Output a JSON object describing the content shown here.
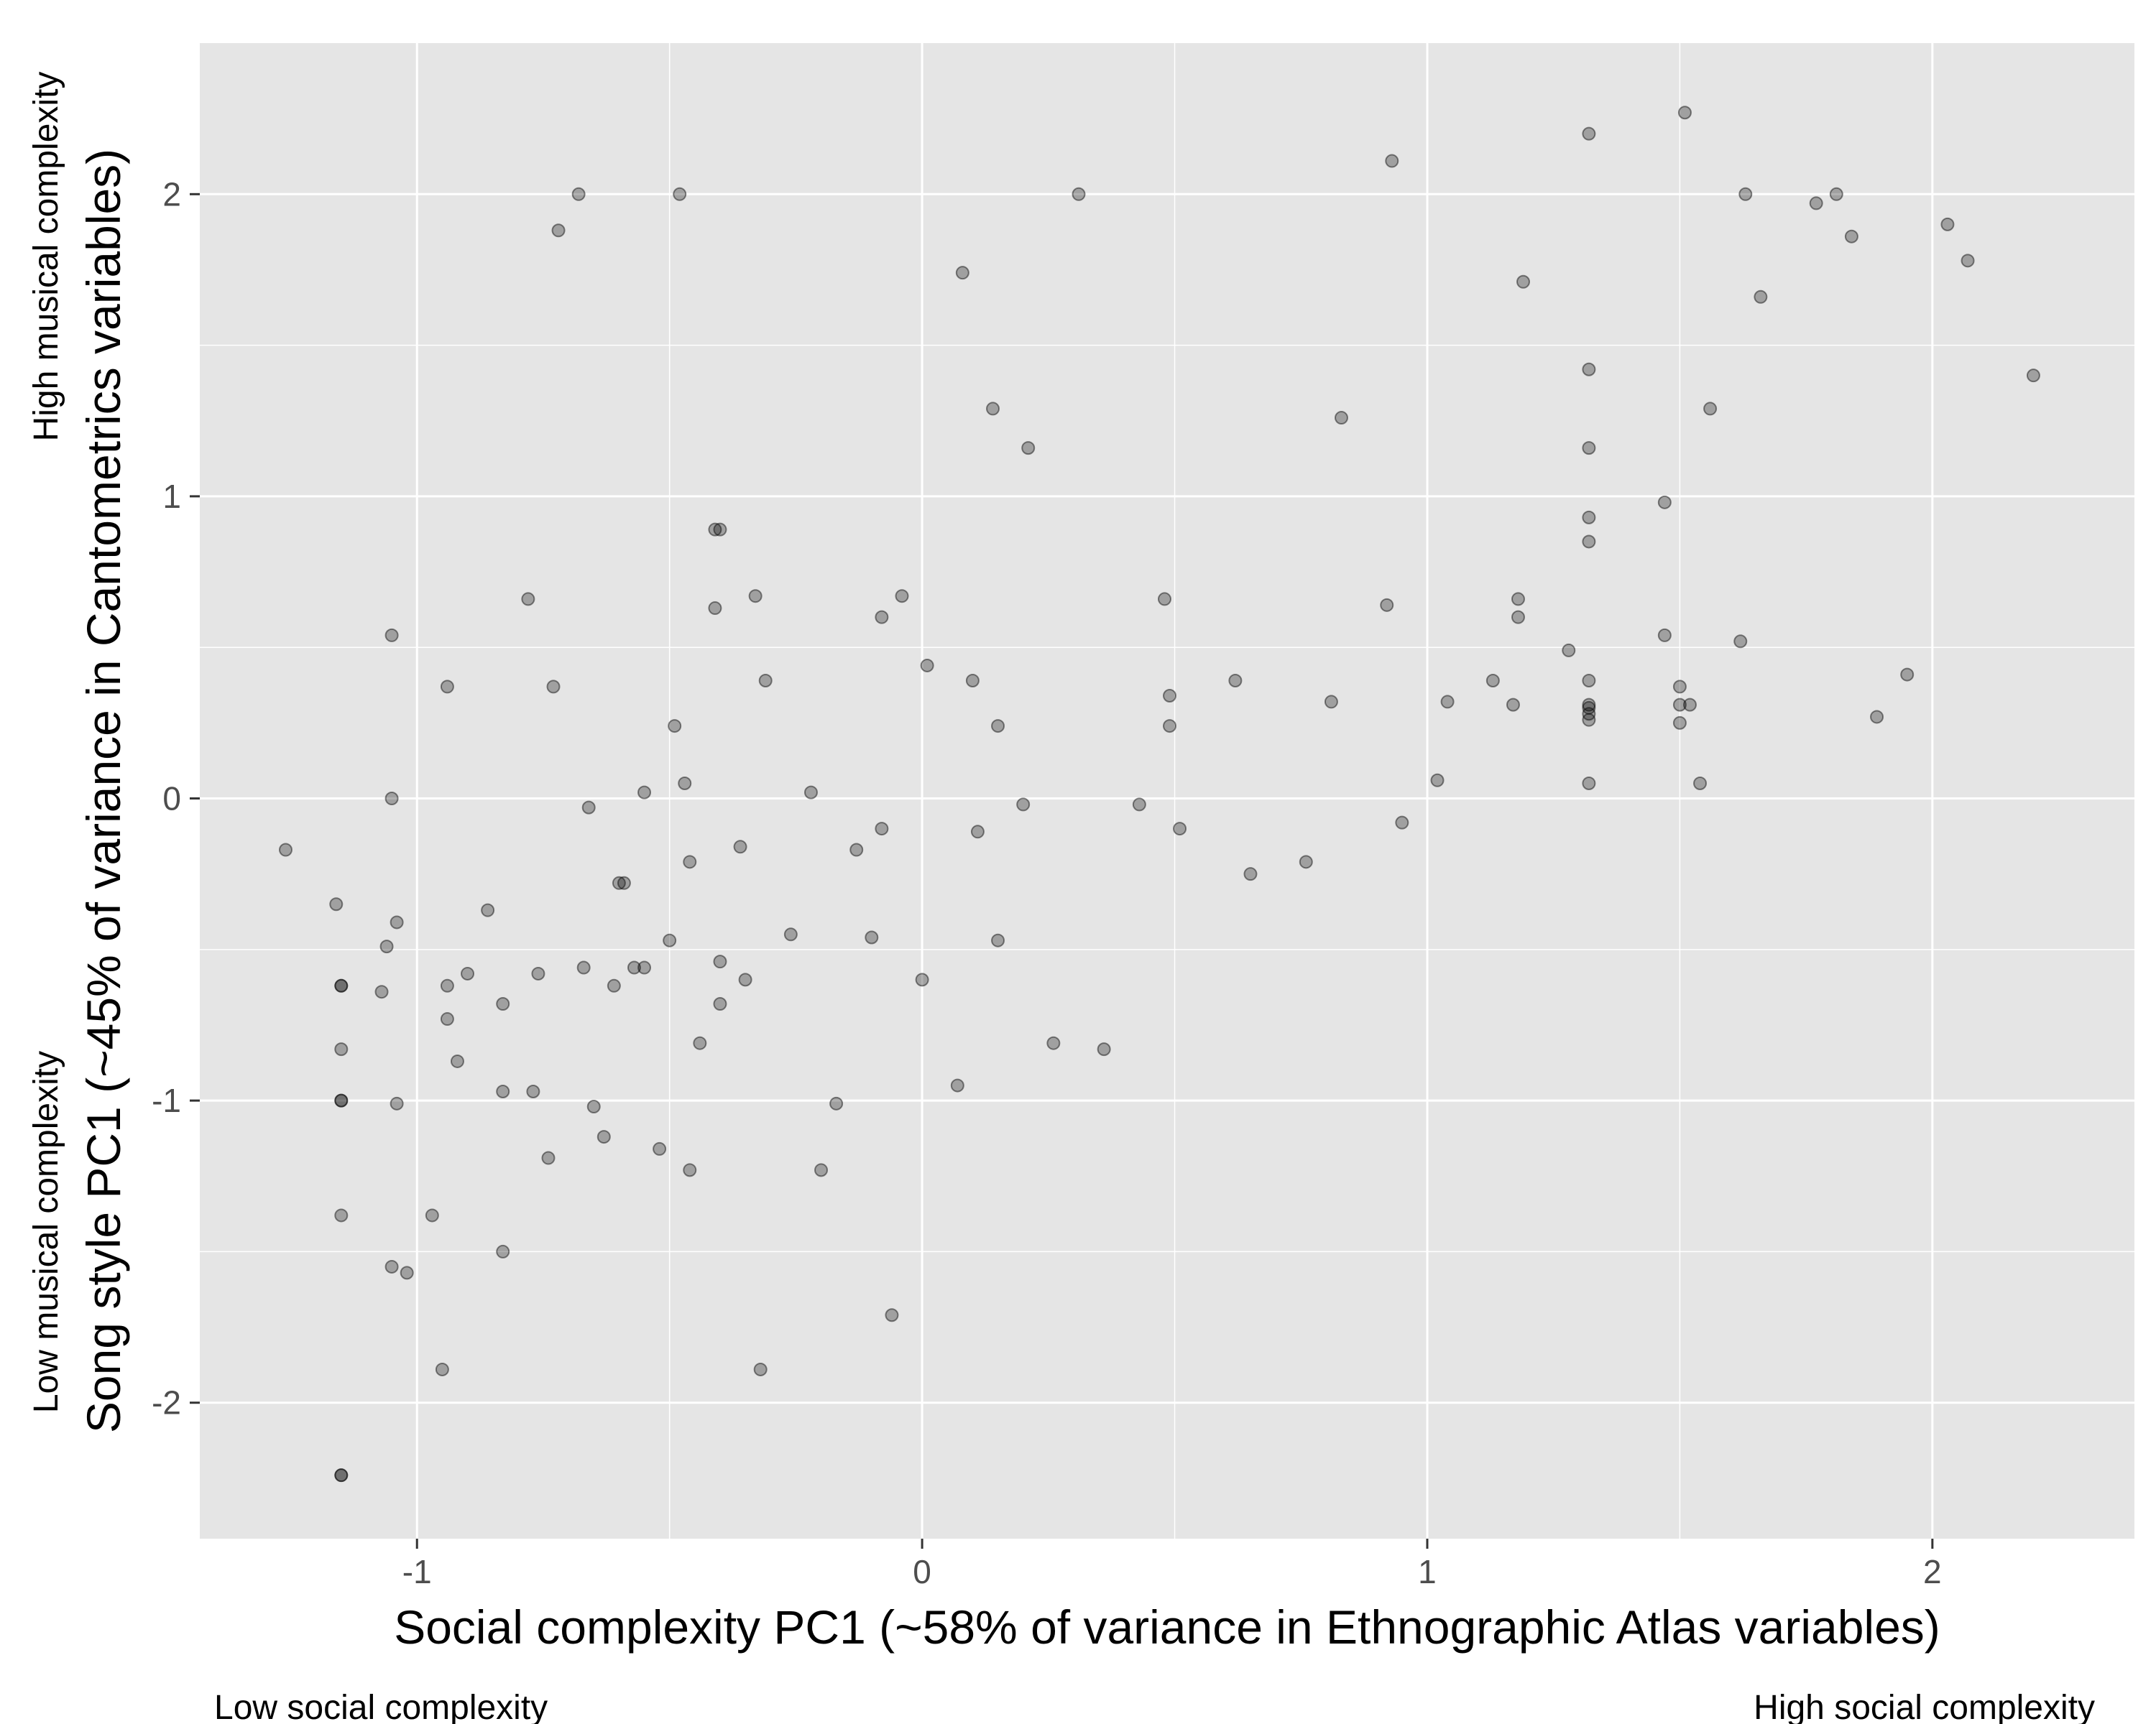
{
  "chart_data": {
    "type": "scatter",
    "xlabel": "Social complexity PC1 (~58% of variance in Ethnographic Atlas variables)",
    "ylabel": "Song style PC1 (~45% of variance in Cantometrics variables)",
    "xlim": [
      -1.43,
      2.4
    ],
    "ylim": [
      -2.45,
      2.5
    ],
    "x_ticks": [
      -1,
      0,
      1,
      2
    ],
    "y_ticks": [
      -2,
      -1,
      0,
      1,
      2
    ],
    "grid": true,
    "annotations": {
      "x_low": "Low social complexity",
      "x_high": "High social complexity",
      "y_low": "Low musical complexity",
      "y_high": "High musical complexity"
    },
    "colors": {
      "panel": "#e5e5e5",
      "grid": "#ffffff",
      "point": "#000000"
    },
    "points": [
      [
        -1.26,
        -0.17
      ],
      [
        -1.16,
        -0.35
      ],
      [
        -1.15,
        -0.62
      ],
      [
        -1.15,
        -0.62
      ],
      [
        -1.15,
        -0.83
      ],
      [
        -1.15,
        -1.0
      ],
      [
        -1.15,
        -1.0
      ],
      [
        -1.15,
        -1.38
      ],
      [
        -1.15,
        -2.24
      ],
      [
        -1.15,
        -2.24
      ],
      [
        -1.07,
        -0.64
      ],
      [
        -1.06,
        -0.49
      ],
      [
        -1.05,
        0.54
      ],
      [
        -1.05,
        0.0
      ],
      [
        -1.05,
        -1.55
      ],
      [
        -1.04,
        -0.41
      ],
      [
        -1.04,
        -1.01
      ],
      [
        -1.02,
        -1.57
      ],
      [
        -0.97,
        -1.38
      ],
      [
        -0.95,
        -1.89
      ],
      [
        -0.94,
        0.37
      ],
      [
        -0.94,
        -0.62
      ],
      [
        -0.94,
        -0.73
      ],
      [
        -0.92,
        -0.87
      ],
      [
        -0.9,
        -0.58
      ],
      [
        -0.86,
        -0.37
      ],
      [
        -0.83,
        -0.68
      ],
      [
        -0.83,
        -0.97
      ],
      [
        -0.83,
        -1.5
      ],
      [
        -0.78,
        0.66
      ],
      [
        -0.77,
        -0.97
      ],
      [
        -0.76,
        -0.58
      ],
      [
        -0.74,
        -1.19
      ],
      [
        -0.73,
        0.37
      ],
      [
        -0.72,
        1.88
      ],
      [
        -0.68,
        2.0
      ],
      [
        -0.67,
        -0.56
      ],
      [
        -0.66,
        -0.03
      ],
      [
        -0.65,
        -1.02
      ],
      [
        -0.63,
        -1.12
      ],
      [
        -0.61,
        -0.62
      ],
      [
        -0.6,
        -0.28
      ],
      [
        -0.59,
        -0.28
      ],
      [
        -0.57,
        -0.56
      ],
      [
        -0.55,
        0.02
      ],
      [
        -0.55,
        -0.56
      ],
      [
        -0.52,
        -1.16
      ],
      [
        -0.5,
        -0.47
      ],
      [
        -0.49,
        0.24
      ],
      [
        -0.48,
        2.0
      ],
      [
        -0.47,
        0.05
      ],
      [
        -0.46,
        -0.21
      ],
      [
        -0.46,
        -1.23
      ],
      [
        -0.44,
        -0.81
      ],
      [
        -0.41,
        0.89
      ],
      [
        -0.41,
        0.63
      ],
      [
        -0.4,
        0.89
      ],
      [
        -0.4,
        -0.54
      ],
      [
        -0.4,
        -0.68
      ],
      [
        -0.36,
        -0.16
      ],
      [
        -0.35,
        -0.6
      ],
      [
        -0.33,
        0.67
      ],
      [
        -0.32,
        -1.89
      ],
      [
        -0.31,
        0.39
      ],
      [
        -0.26,
        -0.45
      ],
      [
        -0.22,
        0.02
      ],
      [
        -0.2,
        -1.23
      ],
      [
        -0.17,
        -1.01
      ],
      [
        -0.13,
        -0.17
      ],
      [
        -0.1,
        -0.46
      ],
      [
        -0.08,
        0.6
      ],
      [
        -0.08,
        -0.1
      ],
      [
        -0.06,
        -1.71
      ],
      [
        -0.04,
        0.67
      ],
      [
        0.01,
        0.44
      ],
      [
        0.0,
        -0.6
      ],
      [
        0.07,
        -0.95
      ],
      [
        0.08,
        1.74
      ],
      [
        0.1,
        0.39
      ],
      [
        0.11,
        -0.11
      ],
      [
        0.14,
        1.29
      ],
      [
        0.15,
        0.24
      ],
      [
        0.15,
        -0.47
      ],
      [
        0.2,
        -0.02
      ],
      [
        0.21,
        1.16
      ],
      [
        0.26,
        -0.81
      ],
      [
        0.31,
        2.0
      ],
      [
        0.36,
        -0.83
      ],
      [
        0.43,
        -0.02
      ],
      [
        0.48,
        0.66
      ],
      [
        0.49,
        0.34
      ],
      [
        0.49,
        0.24
      ],
      [
        0.51,
        -0.1
      ],
      [
        0.62,
        0.39
      ],
      [
        0.65,
        -0.25
      ],
      [
        0.76,
        -0.21
      ],
      [
        0.81,
        0.32
      ],
      [
        0.83,
        1.26
      ],
      [
        0.92,
        0.64
      ],
      [
        0.93,
        2.11
      ],
      [
        0.95,
        -0.08
      ],
      [
        1.02,
        0.06
      ],
      [
        1.04,
        0.32
      ],
      [
        1.13,
        0.39
      ],
      [
        1.17,
        0.31
      ],
      [
        1.18,
        0.6
      ],
      [
        1.18,
        0.66
      ],
      [
        1.19,
        1.71
      ],
      [
        1.28,
        0.49
      ],
      [
        1.32,
        2.2
      ],
      [
        1.32,
        1.42
      ],
      [
        1.32,
        1.16
      ],
      [
        1.32,
        0.93
      ],
      [
        1.32,
        0.85
      ],
      [
        1.32,
        0.39
      ],
      [
        1.32,
        0.31
      ],
      [
        1.32,
        0.3
      ],
      [
        1.32,
        0.28
      ],
      [
        1.32,
        0.26
      ],
      [
        1.32,
        0.05
      ],
      [
        1.47,
        0.98
      ],
      [
        1.47,
        0.54
      ],
      [
        1.5,
        0.37
      ],
      [
        1.5,
        0.31
      ],
      [
        1.5,
        0.25
      ],
      [
        1.51,
        2.27
      ],
      [
        1.52,
        0.31
      ],
      [
        1.54,
        0.05
      ],
      [
        1.56,
        1.29
      ],
      [
        1.62,
        0.52
      ],
      [
        1.63,
        2.0
      ],
      [
        1.66,
        1.66
      ],
      [
        1.77,
        1.97
      ],
      [
        1.81,
        2.0
      ],
      [
        1.84,
        1.86
      ],
      [
        1.89,
        0.27
      ],
      [
        1.95,
        0.41
      ],
      [
        2.03,
        1.9
      ],
      [
        2.07,
        1.78
      ],
      [
        2.2,
        1.4
      ]
    ]
  }
}
